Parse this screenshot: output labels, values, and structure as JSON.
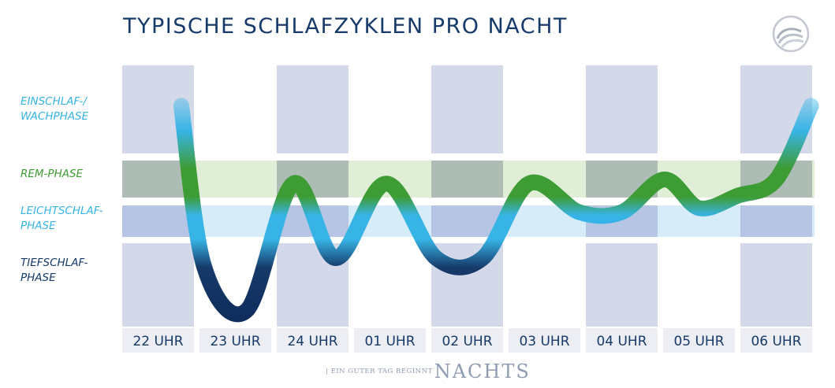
{
  "header": {
    "title": "TYPISCHE SCHLAFZYKLEN PRO NACHT"
  },
  "phases": {
    "wake": "EINSCHLAF-/\nWACHPHASE",
    "rem": "REM-PHASE",
    "light": "LEICHTSCHLAF-\nPHASE",
    "deep": "TIEFSCHLAF-\nPHASE"
  },
  "footer": {
    "tagline": "| EIN GUTER TAG BEGINNT",
    "brand": "NACHTS"
  },
  "colors": {
    "navy": "#163a69",
    "light_blue": "#37b4e6",
    "green": "#3e9c35",
    "column_blue": "#d3d9e9",
    "rem_band": "#e0eed7",
    "light_band": "#d6ecf8"
  },
  "chart_data": {
    "type": "line",
    "title": "TYPISCHE SCHLAFZYKLEN PRO NACHT",
    "categories": [
      "22 UHR",
      "23 UHR",
      "24 UHR",
      "01 UHR",
      "02 UHR",
      "03 UHR",
      "04 UHR",
      "05 UHR",
      "06 UHR"
    ],
    "y_levels": [
      "TIEFSCHLAF-PHASE",
      "LEICHTSCHLAF-PHASE",
      "REM-PHASE",
      "EINSCHLAF-/WACHPHASE"
    ],
    "series": [
      {
        "x": [
          0.3,
          0.6,
          1.15,
          1.75,
          2.3,
          2.95,
          3.6,
          4.2,
          4.8,
          5.45,
          6.0,
          6.55,
          7.0,
          7.5,
          8.0,
          8.45
        ],
        "y": [
          3.2,
          0.5,
          0.05,
          1.9,
          0.6,
          1.9,
          0.6,
          0.6,
          1.9,
          1.2,
          1.2,
          2.0,
          1.3,
          1.6,
          2.0,
          3.2
        ]
      }
    ]
  }
}
